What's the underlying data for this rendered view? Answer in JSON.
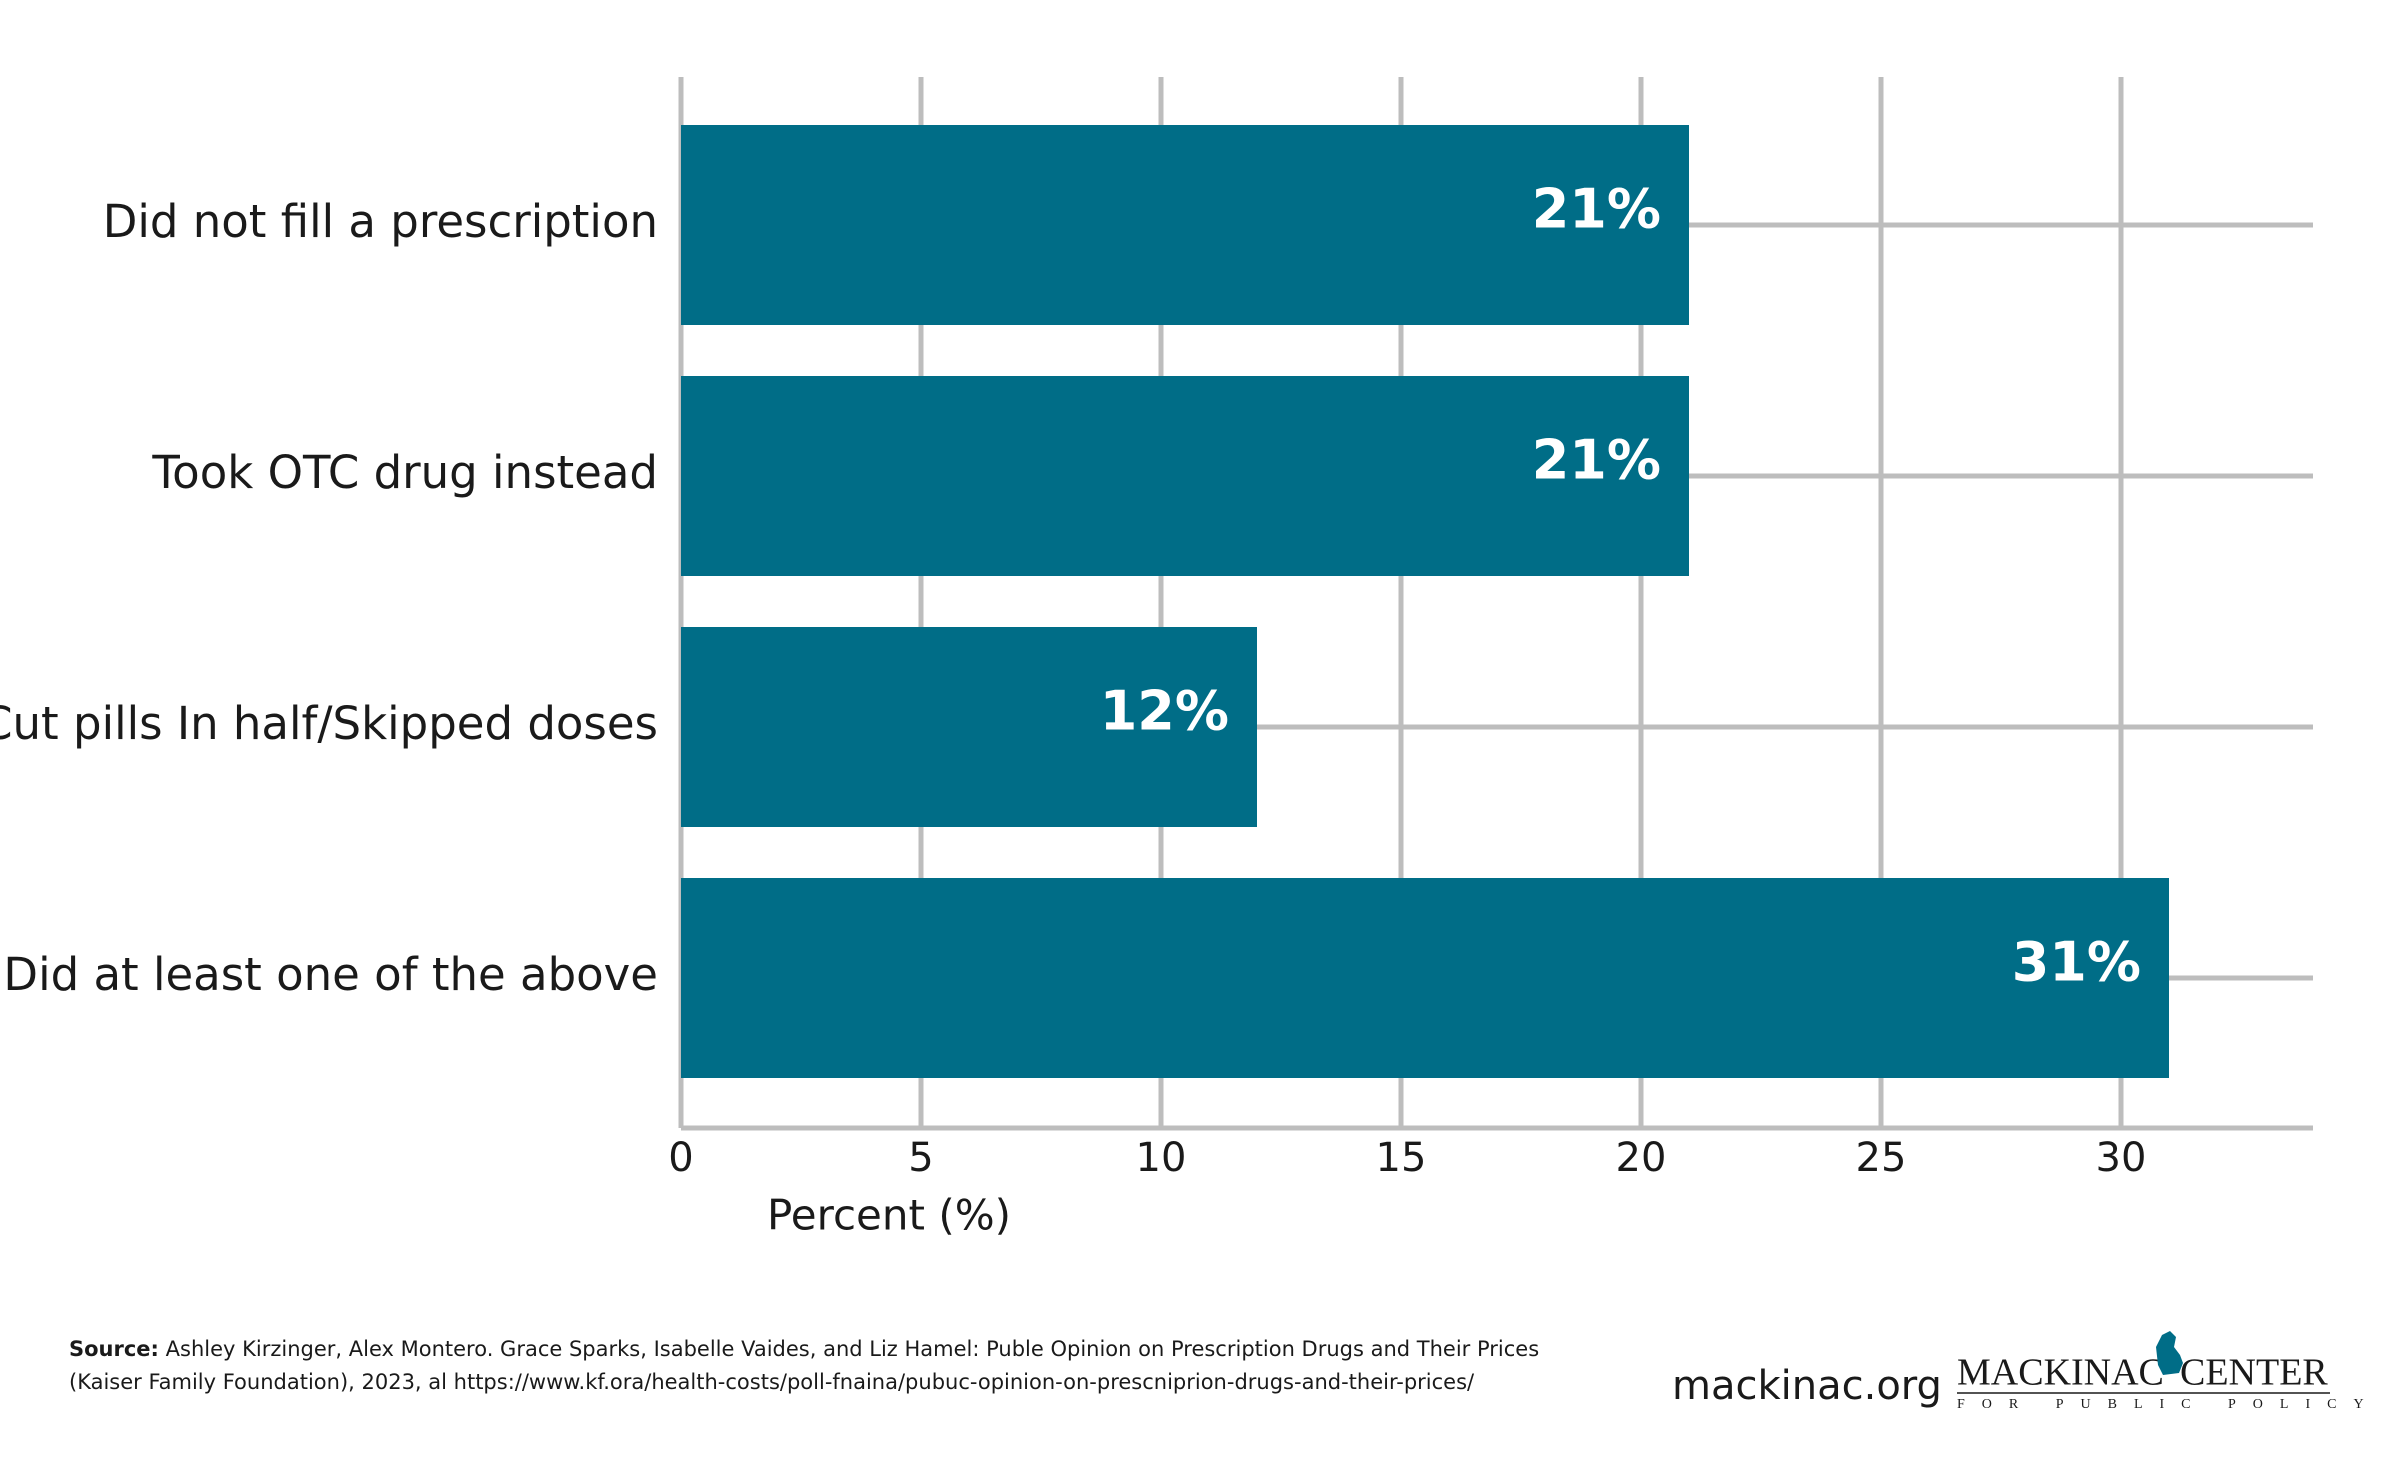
{
  "chart_data": {
    "type": "bar",
    "orientation": "horizontal",
    "categories": [
      "Did not fill a prescription",
      "Took OTC drug instead",
      "Cut pills In half/Skipped doses",
      "Did at least one of the above"
    ],
    "values": [
      21,
      21,
      12,
      31
    ],
    "value_labels": [
      "21%",
      "21%",
      "12%",
      "31%"
    ],
    "color": "#006d87",
    "xlim": [
      0,
      34
    ],
    "xticks": [
      0,
      5,
      10,
      15,
      20,
      25,
      30
    ],
    "grid": true,
    "x_label": "Percent (%)"
  },
  "footer": {
    "source_label": "Source:",
    "source_lines": [
      "Ashley Kirzinger, Alex Montero. Grace Sparks, Isabelle Vaides, and Liz Hamel: Puble Opinion on Prescription Drugs and Their Prices",
      "(Kaiser Family Foundation), 2023, al https://www.kf.ora/health-costs/poll-fnaina/pubuc-opinion-on-prescniprion-drugs-and-their-prices/"
    ],
    "website": "mackinac.org",
    "logo_left": "MACKINAC",
    "logo_right": "CENTER",
    "logo_sub": "FOR PUBLIC POLICY"
  }
}
